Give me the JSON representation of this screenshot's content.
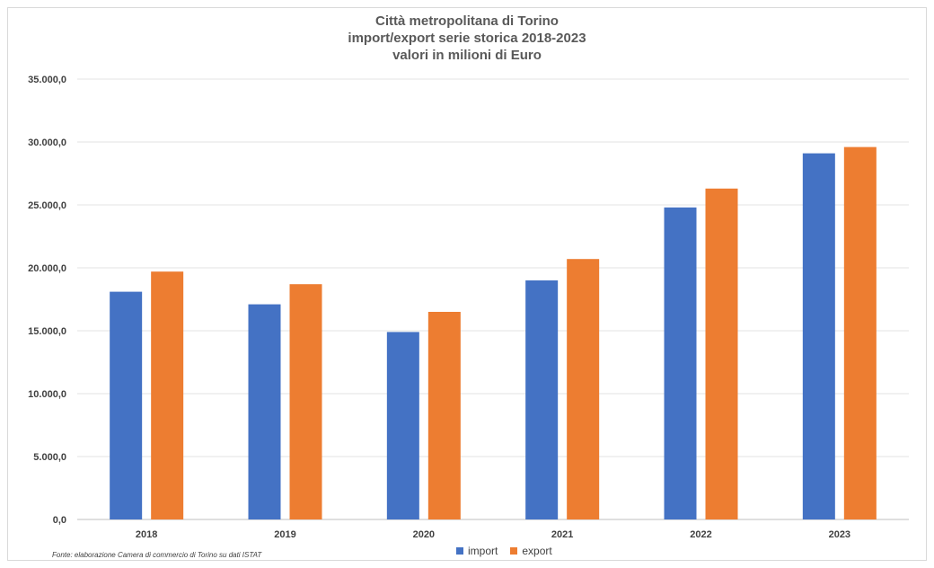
{
  "chart_data": {
    "type": "bar",
    "title_lines": [
      "Città metropolitana di Torino",
      "import/export serie storica 2018-2023",
      "valori in milioni di Euro"
    ],
    "categories": [
      "2018",
      "2019",
      "2020",
      "2021",
      "2022",
      "2023"
    ],
    "series": [
      {
        "name": "import",
        "color": "#4472c4",
        "values": [
          18100,
          17100,
          14900,
          19000,
          24800,
          29100
        ]
      },
      {
        "name": "export",
        "color": "#ed7d31",
        "values": [
          19700,
          18700,
          16500,
          20700,
          26300,
          29600
        ]
      }
    ],
    "ylim": [
      0,
      35000
    ],
    "yticks": [
      0,
      5000,
      10000,
      15000,
      20000,
      25000,
      30000,
      35000
    ],
    "ytick_labels": [
      "0,0",
      "5.000,0",
      "10.000,0",
      "15.000,0",
      "20.000,0",
      "25.000,0",
      "30.000,0",
      "35.000,0"
    ],
    "grid": true,
    "legend_position": "bottom",
    "source": "Fonte: elaborazione Camera di commercio di Torino su dati ISTAT"
  }
}
